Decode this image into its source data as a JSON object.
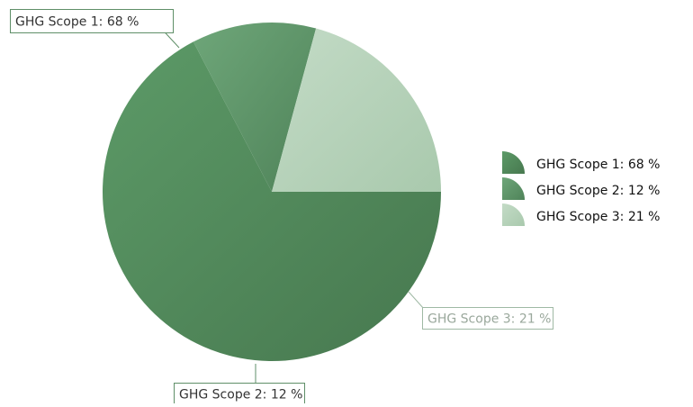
{
  "chart_data": {
    "type": "pie",
    "title": "",
    "slices": [
      {
        "label": "GHG Scope 1: 68 %",
        "value": 68,
        "color": "#548f5f",
        "color_light": "#5c9a67",
        "color_dark": "#47784f"
      },
      {
        "label": "GHG Scope 2: 12 %",
        "value": 12,
        "color": "#5b9666",
        "color_light": "#6ea679",
        "color_dark": "#4f8359"
      },
      {
        "label": "GHG Scope 3: 21 %",
        "value": 21,
        "color": "#b7d3bb",
        "color_light": "#c3dbc6",
        "color_dark": "#a9c9ad"
      }
    ],
    "legend": {
      "position": "right",
      "entries": [
        "GHG Scope 1: 68 %",
        "GHG Scope 2: 12 %",
        "GHG Scope 3: 21 %"
      ]
    },
    "label_border_color": "#5f8f68",
    "label_border_color_light": "#9fb9a4",
    "label_text_color_light": "#9aa89c"
  }
}
